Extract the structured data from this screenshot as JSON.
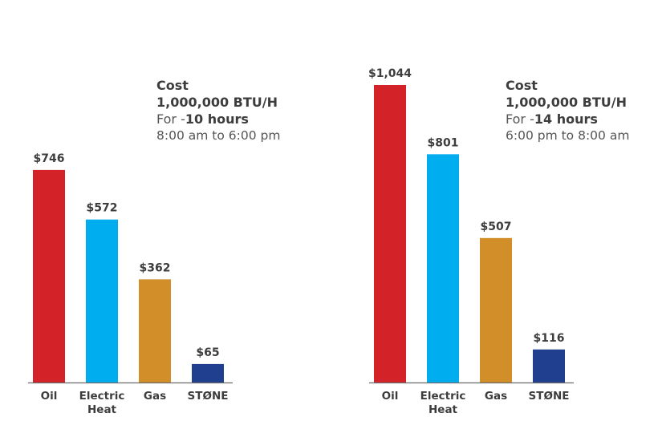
{
  "chart_data": [
    {
      "type": "bar",
      "categories": [
        "Oil",
        "Electric Heat",
        "Gas",
        "STØNE"
      ],
      "values": [
        746,
        572,
        362,
        65
      ],
      "value_labels": [
        "$746",
        "$572",
        "$362",
        "$65"
      ],
      "colors": [
        "#d42229",
        "#00aeef",
        "#d28e28",
        "#213f8f"
      ],
      "ylim": [
        0,
        1044
      ],
      "grid": false,
      "legend": "none",
      "annotation": {
        "title": "Cost",
        "subtitle": "1,000,000 BTU/H",
        "for_prefix": "For -",
        "for_bold": "10 hours",
        "time_range": "8:00 am to 6:00 pm"
      }
    },
    {
      "type": "bar",
      "categories": [
        "Oil",
        "Electric Heat",
        "Gas",
        "STØNE"
      ],
      "values": [
        1044,
        801,
        507,
        116
      ],
      "value_labels": [
        "$1,044",
        "$801",
        "$507",
        "$116"
      ],
      "colors": [
        "#d42229",
        "#00aeef",
        "#d28e28",
        "#213f8f"
      ],
      "ylim": [
        0,
        1044
      ],
      "grid": false,
      "legend": "none",
      "annotation": {
        "title": "Cost",
        "subtitle": "1,000,000 BTU/H",
        "for_prefix": "For -",
        "for_bold": "14 hours",
        "time_range": "6:00 pm to 8:00 am"
      }
    }
  ]
}
